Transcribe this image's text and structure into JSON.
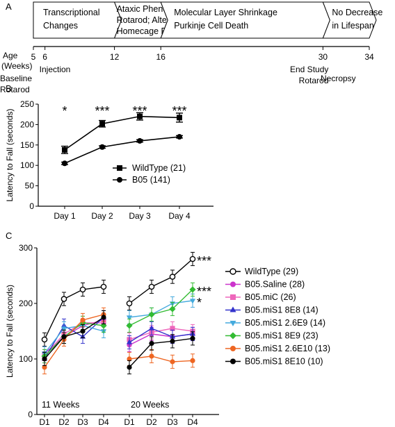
{
  "panel_a": {
    "label": "A",
    "phases": [
      {
        "lines": [
          "Transcriptional",
          "Changes"
        ]
      },
      {
        "lines": [
          "Ataxic Phenotype by",
          "Rotarod; Altered",
          "Homecage Behavior"
        ]
      },
      {
        "lines": [
          "Molecular Layer Shrinkage",
          "Purkinje Cell Death"
        ]
      },
      {
        "lines": [
          "No Decrease",
          "in Lifespan"
        ]
      }
    ],
    "age_label": [
      "Age",
      "(Weeks)"
    ],
    "ticks": [
      5,
      6,
      12,
      16,
      30,
      34
    ],
    "events": [
      {
        "week": 5,
        "lines": [
          "Baseline",
          "Rotarod"
        ]
      },
      {
        "week": 6,
        "lines": [
          "Injection"
        ]
      },
      {
        "week": 30,
        "lines": [
          "End Study",
          "Rotarod"
        ]
      },
      {
        "week": 34,
        "lines": [
          "Necropsy"
        ]
      }
    ]
  },
  "chart_data": [
    {
      "panel": "B",
      "type": "line",
      "ylabel": "Latency to Fall (seconds)",
      "ylim": [
        0,
        250
      ],
      "yticks": [
        0,
        50,
        100,
        150,
        200,
        250
      ],
      "categories": [
        "Day 1",
        "Day 2",
        "Day 3",
        "Day 4"
      ],
      "legend_position": "center",
      "series": [
        {
          "name": "WildType (21)",
          "marker": "square",
          "values": [
            138,
            202,
            220,
            217
          ],
          "err": [
            9,
            8,
            9,
            11
          ]
        },
        {
          "name": "B05 (141)",
          "marker": "circle",
          "values": [
            105,
            145,
            160,
            170
          ],
          "err": [
            3,
            3,
            3,
            3
          ]
        }
      ],
      "significance": [
        "*",
        "***",
        "***",
        "***"
      ]
    },
    {
      "panel": "C",
      "type": "line",
      "ylabel": "Latency to Fall (seconds)",
      "ylim": [
        0,
        300
      ],
      "yticks": [
        0,
        100,
        200,
        300
      ],
      "groups": [
        {
          "label": "11 Weeks",
          "categories": [
            "D1",
            "D2",
            "D3",
            "D4"
          ]
        },
        {
          "label": "20 Weeks",
          "categories": [
            "D1",
            "D2",
            "D3",
            "D4"
          ]
        }
      ],
      "legend_position": "right",
      "series": [
        {
          "name": "WildType (29)",
          "color": "#000000",
          "marker": "open-circle",
          "values_11": [
            135,
            208,
            225,
            230
          ],
          "values_20": [
            200,
            230,
            248,
            280
          ]
        },
        {
          "name": "B05.Saline (28)",
          "color": "#cc33cc",
          "marker": "circle",
          "values_11": [
            110,
            140,
            160,
            170
          ],
          "values_20": [
            125,
            145,
            140,
            145
          ]
        },
        {
          "name": "B05.miC (26)",
          "color": "#ee66bb",
          "marker": "square",
          "values_11": [
            105,
            145,
            165,
            165
          ],
          "values_20": [
            135,
            148,
            155,
            150
          ]
        },
        {
          "name": "B05.miS1 8E8 (14)",
          "color": "#3333cc",
          "marker": "triangle-up",
          "values_11": [
            100,
            160,
            140,
            175
          ],
          "values_20": [
            130,
            155,
            140,
            145
          ]
        },
        {
          "name": "B05.miS1 2.6E9 (14)",
          "color": "#44aadd",
          "marker": "triangle-down",
          "values_11": [
            110,
            155,
            160,
            150
          ],
          "values_20": [
            175,
            180,
            200,
            205
          ]
        },
        {
          "name": "B05.miS1 8E9 (23)",
          "color": "#33bb33",
          "marker": "diamond",
          "values_11": [
            105,
            140,
            165,
            160
          ],
          "values_20": [
            160,
            180,
            190,
            225
          ]
        },
        {
          "name": "B05.miS1 2.6E10 (13)",
          "color": "#ee6622",
          "marker": "circle",
          "values_11": [
            85,
            135,
            170,
            180
          ],
          "values_20": [
            100,
            105,
            95,
            97
          ]
        },
        {
          "name": "B05.miS1 8E10 (10)",
          "color": "#000000",
          "marker": "circle",
          "values_11": [
            100,
            140,
            150,
            175
          ],
          "values_20": [
            85,
            128,
            132,
            137
          ]
        }
      ],
      "significance": [
        {
          "series": "WildType (29)",
          "text": "***"
        },
        {
          "series": "B05.miS1 8E9 (23)",
          "text": "***"
        },
        {
          "series": "B05.miS1 2.6E9 (14)",
          "text": "*"
        }
      ]
    }
  ]
}
